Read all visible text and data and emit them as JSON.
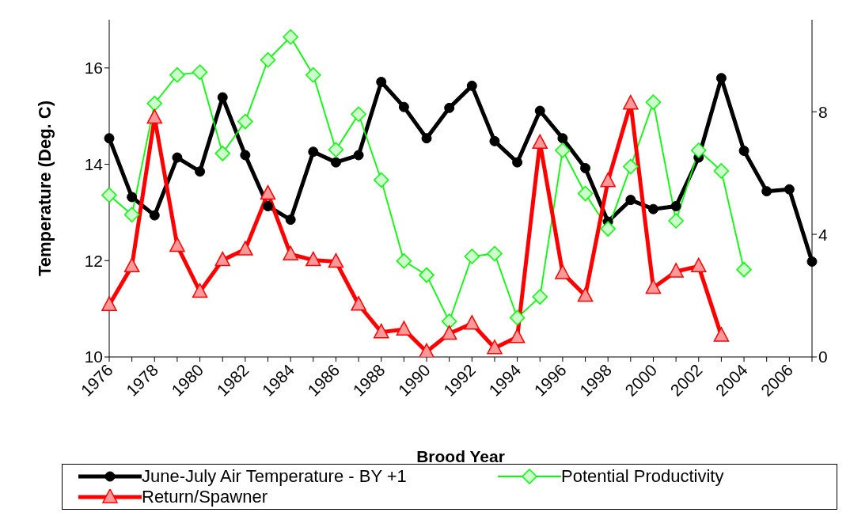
{
  "chart_data": {
    "type": "line",
    "xlabel": "Brood Year",
    "ylabel": "Temperature (Deg. C)",
    "categories": [
      "1976",
      null,
      "1978",
      null,
      "1980",
      null,
      "1982",
      null,
      "1984",
      null,
      "1986",
      null,
      "1988",
      null,
      "1990",
      null,
      "1992",
      null,
      "1994",
      null,
      "1996",
      null,
      "1998",
      null,
      "2000",
      null,
      "2002",
      null,
      "2004",
      null,
      "2006",
      null
    ],
    "series": [
      {
        "name": "June-July Air Temperature - BY +1",
        "color": "#000000",
        "marker": "circle",
        "values": [
          14.54,
          13.32,
          12.94,
          14.14,
          13.85,
          15.39,
          14.19,
          13.13,
          12.85,
          14.26,
          14.04,
          14.19,
          15.71,
          15.19,
          14.54,
          15.17,
          15.63,
          14.48,
          14.04,
          15.11,
          14.54,
          13.92,
          12.81,
          13.26,
          13.07,
          13.13,
          14.14,
          15.79,
          14.28,
          13.44,
          13.48,
          11.98
        ]
      },
      {
        "name": "Potential Productivity",
        "color": "#00ff00",
        "marker": "diamond",
        "axis": "y2",
        "values": [
          5.28,
          4.64,
          8.27,
          9.2,
          9.29,
          6.64,
          7.68,
          9.69,
          10.44,
          9.2,
          6.76,
          7.92,
          5.77,
          3.13,
          2.67,
          1.16,
          3.28,
          3.37,
          1.28,
          1.96,
          6.74,
          5.33,
          4.18,
          6.21,
          8.31,
          4.44,
          6.74,
          6.07,
          2.85,
          null,
          null,
          null
        ]
      },
      {
        "name": "Return/Spawner",
        "color": "#ff0000",
        "marker": "triangle",
        "axis": "y2",
        "values": [
          1.7,
          2.96,
          7.81,
          3.63,
          2.13,
          3.16,
          3.51,
          5.33,
          3.35,
          3.16,
          3.11,
          1.71,
          0.81,
          0.9,
          0.17,
          0.76,
          1.09,
          0.29,
          0.65,
          6.99,
          2.74,
          2.0,
          5.74,
          8.27,
          2.26,
          2.79,
          2.96,
          0.7,
          null,
          null,
          null,
          null
        ]
      }
    ],
    "ylim": [
      10,
      17
    ],
    "yticks": [
      10,
      12,
      14,
      16
    ],
    "y2lim": [
      0,
      11
    ],
    "y2ticks": [
      0,
      4,
      8
    ],
    "grid": false,
    "legend": "bottom",
    "line_style": "solid"
  }
}
